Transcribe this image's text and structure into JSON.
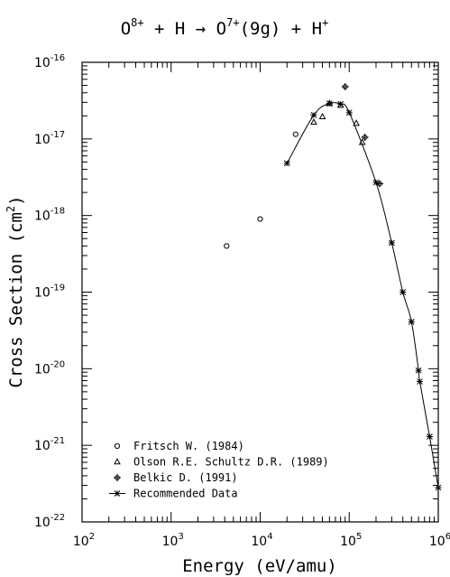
{
  "chart_data": {
    "type": "scatter",
    "title": {
      "parts": [
        {
          "text": "O",
          "sup": "8+"
        },
        {
          "text": " + H → O",
          "sup": "7+"
        },
        {
          "text": "(9g) + H",
          "sup": "+"
        }
      ]
    },
    "xlabel": "Energy (eV/amu)",
    "ylabel": {
      "main": "Cross Section (cm",
      "sup": "2",
      "tail": ")"
    },
    "xscale": "log",
    "yscale": "log",
    "xlim": [
      100,
      1000000
    ],
    "ylim": [
      1e-22,
      1e-16
    ],
    "x_ticks": [
      {
        "value": 100,
        "base": "10",
        "exp": "2"
      },
      {
        "value": 1000,
        "base": "10",
        "exp": "3"
      },
      {
        "value": 10000,
        "base": "10",
        "exp": "4"
      },
      {
        "value": 100000,
        "base": "10",
        "exp": "5"
      },
      {
        "value": 1000000,
        "base": "10",
        "exp": "6"
      }
    ],
    "y_ticks": [
      {
        "value": 1e-22,
        "base": "10",
        "exp": "-22"
      },
      {
        "value": 1e-21,
        "base": "10",
        "exp": "-21"
      },
      {
        "value": 1e-20,
        "base": "10",
        "exp": "-20"
      },
      {
        "value": 1e-19,
        "base": "10",
        "exp": "-19"
      },
      {
        "value": 1e-18,
        "base": "10",
        "exp": "-18"
      },
      {
        "value": 1e-17,
        "base": "10",
        "exp": "-17"
      },
      {
        "value": 1e-16,
        "base": "10",
        "exp": "-16"
      }
    ],
    "legend_position": "bottom-left",
    "series": [
      {
        "name": "Fritsch W. (1984)",
        "marker": "circle",
        "points": [
          [
            4200,
            4e-19
          ],
          [
            10000,
            9e-19
          ],
          [
            25000,
            1.15e-17
          ]
        ]
      },
      {
        "name": "Olson R.E. Schultz D.R. (1989)",
        "marker": "triangle",
        "points": [
          [
            40000,
            1.65e-17
          ],
          [
            50000,
            1.95e-17
          ],
          [
            60000,
            2.9e-17
          ],
          [
            80000,
            2.75e-17
          ],
          [
            120000,
            1.6e-17
          ],
          [
            140000,
            9e-18
          ]
        ]
      },
      {
        "name": "Belkic D. (1991)",
        "marker": "circle-plus",
        "points": [
          [
            90000,
            4.8e-17
          ],
          [
            150000,
            1.05e-17
          ],
          [
            220000,
            2.6e-18
          ]
        ]
      },
      {
        "name": "Recommended Data",
        "marker": "star",
        "line": true,
        "points": [
          [
            20000,
            4.8e-18
          ],
          [
            40000,
            2.05e-17
          ],
          [
            60000,
            2.9e-17
          ],
          [
            80000,
            2.85e-17
          ],
          [
            100000,
            2.2e-17
          ],
          [
            200000,
            2.7e-18
          ],
          [
            300000,
            4.4e-19
          ],
          [
            400000,
            1e-19
          ],
          [
            500000,
            4.1e-20
          ],
          [
            600000,
            9.5e-21
          ],
          [
            620000,
            6.8e-21
          ],
          [
            800000,
            1.3e-21
          ],
          [
            1000000,
            2.8e-22
          ]
        ]
      }
    ]
  }
}
